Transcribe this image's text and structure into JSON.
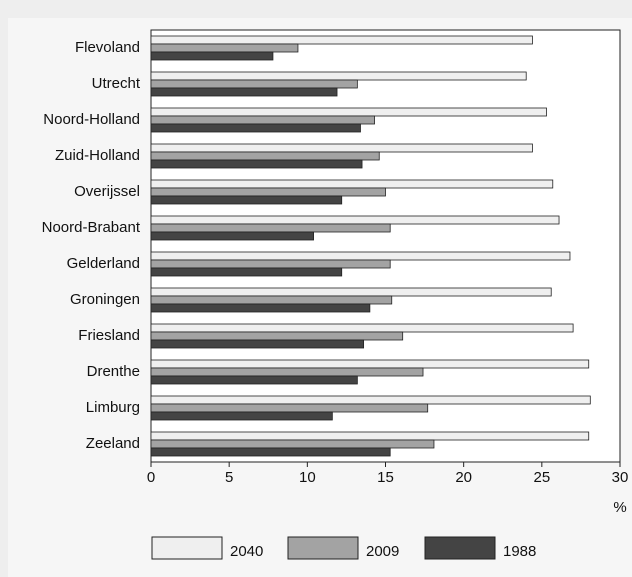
{
  "chart_data": {
    "type": "hbar",
    "categories": [
      "Flevoland",
      "Utrecht",
      "Noord-Holland",
      "Zuid-Holland",
      "Overijssel",
      "Noord-Brabant",
      "Gelderland",
      "Groningen",
      "Friesland",
      "Drenthe",
      "Limburg",
      "Zeeland"
    ],
    "series": [
      {
        "name": "2040",
        "color": "#efefef",
        "values": [
          24.4,
          24.0,
          25.3,
          24.4,
          25.7,
          26.1,
          26.8,
          25.6,
          27.0,
          28.0,
          28.1,
          28.0
        ]
      },
      {
        "name": "2009",
        "color": "#a3a3a3",
        "values": [
          9.4,
          13.2,
          14.3,
          14.6,
          15.0,
          15.3,
          15.3,
          15.4,
          16.1,
          17.4,
          17.7,
          18.1
        ]
      },
      {
        "name": "1988",
        "color": "#444444",
        "values": [
          7.8,
          11.9,
          13.4,
          13.5,
          12.2,
          10.4,
          12.2,
          14.0,
          13.6,
          13.2,
          11.6,
          15.3
        ]
      }
    ],
    "xlabel": "%",
    "xlim": [
      0,
      30
    ],
    "xticks": [
      0,
      5,
      10,
      15,
      20,
      25,
      30
    ],
    "grid": false,
    "legend": "bottom"
  }
}
